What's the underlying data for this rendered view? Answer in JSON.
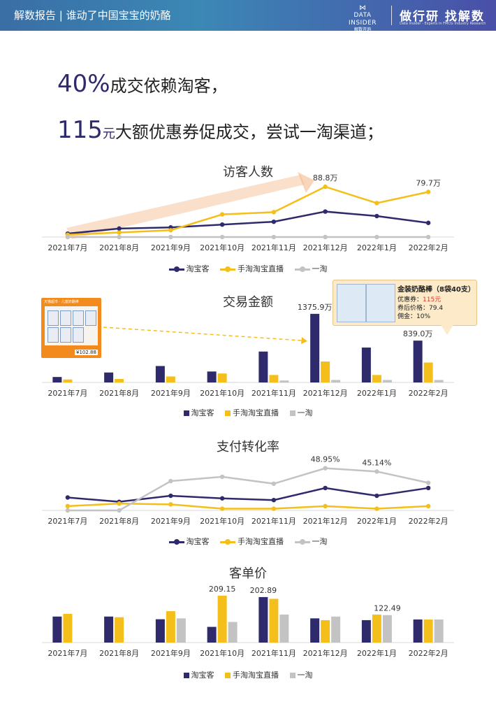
{
  "header": {
    "title": "解数报告 | 谁动了中国宝宝的奶酪",
    "brand_name": "DATA INSIDER",
    "brand_sub": "解数咨询",
    "slogan": "做行研 找解数",
    "slogan_sub": "Data Insider - Experts in FMCG Industry Research"
  },
  "headline": {
    "line1_number": "40%",
    "line1_text": "成交依赖淘客，",
    "line2_number": "115",
    "line2_unit": "元",
    "line2_text": "大额优惠券促成交，尝试一淘渠道；"
  },
  "colors": {
    "taobaoke": "#2f2a6b",
    "live": "#f4bf1a",
    "yitao": "#c3c3c3",
    "arrow": "#f5b98a"
  },
  "legend": {
    "taobaoke": "淘宝客",
    "live": "手淘淘宝直播",
    "yitao": "一淘"
  },
  "product_card": {
    "label": "天猫超市 · 儿童奶酪棒",
    "price": "¥102.88"
  },
  "callout": {
    "title": "金装奶酪棒（8袋40支）",
    "coupon_label": "优惠券：",
    "coupon_value": "115元",
    "after_price": "券后价格：79.4",
    "commission": "佣金：10%"
  },
  "chart_data": [
    {
      "type": "line",
      "title": "访客人数",
      "categories": [
        "2021年7月",
        "2021年8月",
        "2021年9月",
        "2021年10月",
        "2021年11月",
        "2021年12月",
        "2022年1月",
        "2022年2月"
      ],
      "series": [
        {
          "name": "淘宝客",
          "values": [
            6,
            15,
            17,
            22,
            27,
            45,
            37,
            25
          ]
        },
        {
          "name": "手淘淘宝直播",
          "values": [
            4,
            8,
            12,
            40,
            44,
            88.8,
            60,
            79.7
          ]
        },
        {
          "name": "一淘",
          "values": [
            0,
            0,
            0,
            0,
            0,
            0,
            0,
            0
          ]
        }
      ],
      "annotations": [
        {
          "series": 1,
          "index": 5,
          "text": "88.8万"
        },
        {
          "series": 1,
          "index": 7,
          "text": "79.7万"
        }
      ],
      "ylim": [
        0,
        105
      ]
    },
    {
      "type": "bar",
      "title": "交易金额",
      "categories": [
        "2021年7月",
        "2021年8月",
        "2021年9月",
        "2021年10月",
        "2021年11月",
        "2021年12月",
        "2022年1月",
        "2022年2月"
      ],
      "series": [
        {
          "name": "淘宝客",
          "values": [
            110,
            200,
            330,
            220,
            620,
            1375.9,
            700,
            839.0
          ]
        },
        {
          "name": "手淘淘宝直播",
          "values": [
            60,
            70,
            120,
            180,
            150,
            420,
            150,
            400
          ]
        },
        {
          "name": "一淘",
          "values": [
            0,
            0,
            0,
            5,
            40,
            50,
            50,
            50
          ]
        }
      ],
      "annotations": [
        {
          "series": 0,
          "index": 5,
          "text": "1375.9万"
        },
        {
          "series": 0,
          "index": 7,
          "text": "839.0万"
        }
      ],
      "ylim": [
        0,
        1500
      ]
    },
    {
      "type": "line",
      "title": "支付转化率",
      "categories": [
        "2021年7月",
        "2021年8月",
        "2021年9月",
        "2021年10月",
        "2021年11月",
        "2021年12月",
        "2022年1月",
        "2022年2月"
      ],
      "series": [
        {
          "name": "淘宝客",
          "values": [
            15,
            10,
            17,
            14,
            12,
            26,
            17,
            26
          ]
        },
        {
          "name": "手淘淘宝直播",
          "values": [
            5,
            8,
            7,
            2,
            2,
            5,
            2,
            5
          ]
        },
        {
          "name": "一淘",
          "values": [
            0,
            0,
            34,
            39,
            31,
            48.95,
            45.14,
            32
          ]
        }
      ],
      "annotations": [
        {
          "series": 2,
          "index": 5,
          "text": "48.95%"
        },
        {
          "series": 2,
          "index": 6,
          "text": "45.14%"
        }
      ],
      "ylim": [
        0,
        60
      ]
    },
    {
      "type": "bar",
      "title": "客单价",
      "categories": [
        "2021年7月",
        "2021年8月",
        "2021年9月",
        "2021年10月",
        "2021年11月",
        "2021年12月",
        "2022年1月",
        "2022年2月"
      ],
      "series": [
        {
          "name": "淘宝客",
          "values": [
            116,
            116,
            104,
            70,
            202.89,
            108,
            100,
            103
          ]
        },
        {
          "name": "手淘淘宝直播",
          "values": [
            128,
            113,
            140,
            209.15,
            195,
            100,
            125,
            103
          ]
        },
        {
          "name": "一淘",
          "values": [
            0,
            0,
            108,
            92,
            125,
            116,
            122.49,
            103
          ]
        }
      ],
      "annotations": [
        {
          "series": 1,
          "index": 3,
          "text": "209.15"
        },
        {
          "series": 0,
          "index": 4,
          "text": "202.89"
        },
        {
          "series": 2,
          "index": 6,
          "text": "122.49"
        }
      ],
      "ylim": [
        0,
        240
      ]
    }
  ]
}
